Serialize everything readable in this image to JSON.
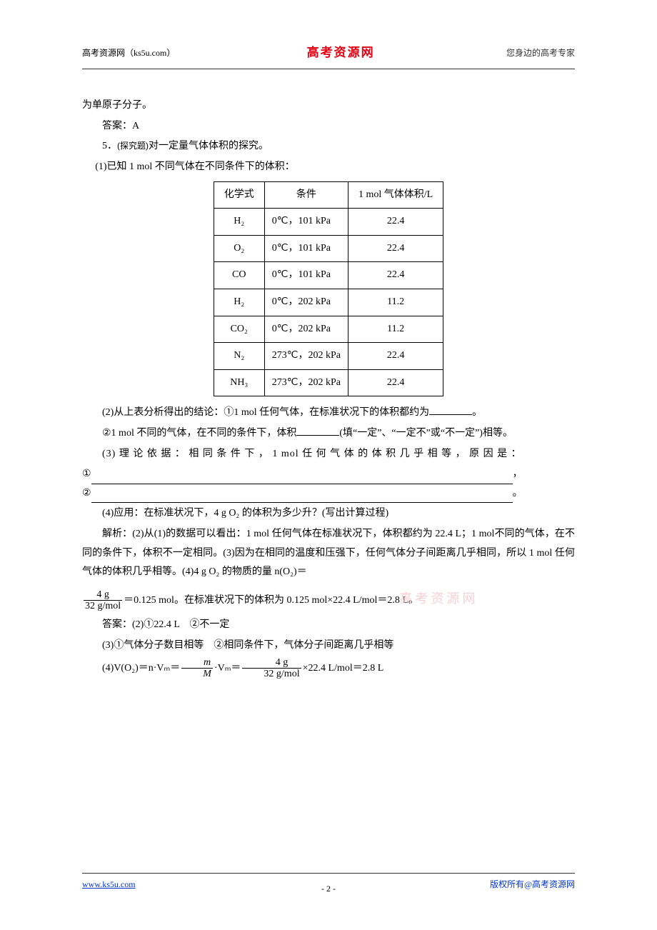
{
  "header": {
    "left": "高考资源网（ks5u.com）",
    "center": "高考资源网",
    "right": "您身边的高考专家"
  },
  "content": {
    "line_cont": "为单原子分子。",
    "ans4": "答案：A",
    "q5_lead": "5．",
    "q5_tag": "(探究题)",
    "q5_rest": "对一定量气体体积的探究。",
    "q5_1": "(1)已知 1 mol 不同气体在不同条件下的体积：",
    "table": {
      "headers": [
        "化学式",
        "条件",
        "1 mol 气体体积/L"
      ],
      "rows": [
        [
          "H₂",
          "0℃，101 kPa",
          "22.4"
        ],
        [
          "O₂",
          "0℃，101 kPa",
          "22.4"
        ],
        [
          "CO",
          "0℃，101 kPa",
          "22.4"
        ],
        [
          "H₂",
          "0℃，202 kPa",
          "11.2"
        ],
        [
          "CO₂",
          "0℃，202 kPa",
          "11.2"
        ],
        [
          "N₂",
          "273℃，202 kPa",
          "22.4"
        ],
        [
          "NH₃",
          "273℃，202 kPa",
          "22.4"
        ]
      ]
    },
    "q5_2a": "(2)从上表分析得出的结论：①1 mol 任何气体，在标准状况下的体积都约为",
    "q5_2a_end": "。",
    "q5_2b_a": "②1 mol 不同的气体，在不同的条件下，体积",
    "q5_2b_b": "(填“一定”、“一定不”或“不一定”)相等。",
    "q5_3_lead": "(3) 理 论 依 据 ： 相 同 条 件 下 ， 1  mol  任 何 气 体 的 体 积 几 乎 相 等 ， 原 因 是 ：",
    "q5_3_1pre": "①",
    "q5_3_1end": "，",
    "q5_3_2pre": "②",
    "q5_3_2end": "。",
    "q5_4": "(4)应用：在标准状况下，4 g O₂ 的体积为多少升？(写出计算过程)",
    "expl_a": "解析：(2)从(1)的数据可以看出：1 mol 任何气体在标准状况下，体积都约为 22.4 L；1 mol不同的气体，在不同的条件下，体积不一定相同。(3)因为在相同的温度和压强下，任何气体分子间距离几乎相同，所以 1 mol 任何气体的体积几乎相等。(4)4 g O₂ 的物质的量 n(O₂)＝",
    "frac1_num": "4 g",
    "frac1_den": "32 g/mol",
    "expl_b": "＝0.125 mol。在标准状况下的体积为 0.125 mol×22.4 L/mol＝2.8 L。",
    "ans5_2": "答案：(2)①22.4 L　②不一定",
    "ans5_3": "(3)①气体分子数目相等　②相同条件下，气体分子间距离几乎相等",
    "ans5_4_a": "(4)V(O₂)＝n·Vₘ＝",
    "frac2_num": "m",
    "frac2_den": "M",
    "ans5_4_b": "·Vₘ＝",
    "frac3_num": "4 g",
    "frac3_den": "32 g/mol",
    "ans5_4_c": "×22.4 L/mol＝2.8 L"
  },
  "watermark": "高考资源网",
  "footer": {
    "left": "www.ks5u.com",
    "center": "- 2 -",
    "right": "版权所有@高考资源网"
  }
}
